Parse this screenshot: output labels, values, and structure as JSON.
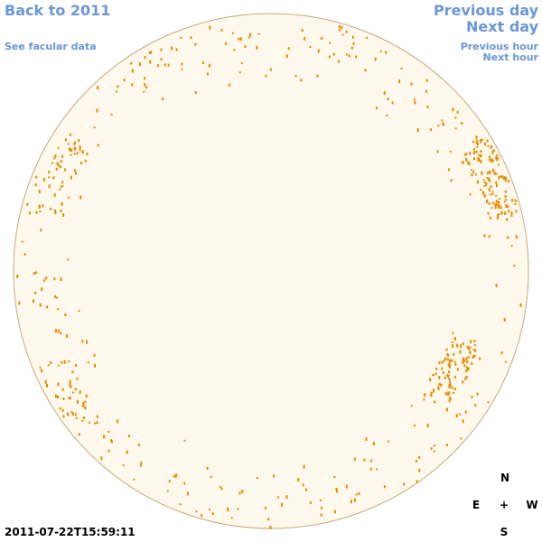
{
  "nav": {
    "back": "Back to 2011",
    "facular": "See facular data",
    "previous_day": "Previous day",
    "next_day": "Next day",
    "previous_hour": "Previous hour",
    "next_hour": "Next hour"
  },
  "timestamp": "2011-07-22T15:59:11",
  "compass": {
    "north": "N",
    "east": "E",
    "center": "+",
    "west": "W",
    "south": "S"
  }
}
